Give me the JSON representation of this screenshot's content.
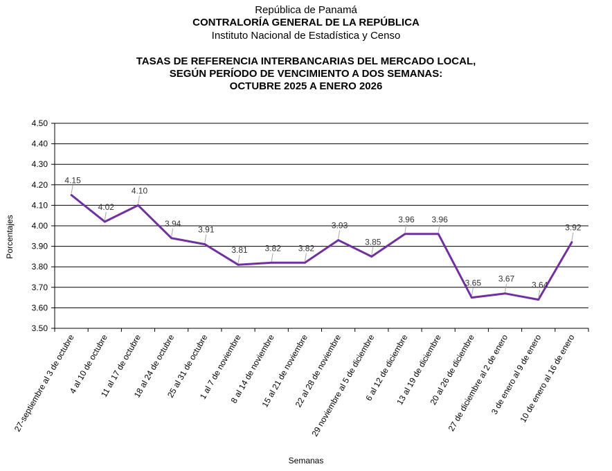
{
  "header": {
    "line1": "República de Panamá",
    "line2": "CONTRALORÍA GENERAL DE LA REPÚBLICA",
    "line3": "Instituto  Nacional de Estadística  y  Censo"
  },
  "chart_data": {
    "type": "line",
    "title_lines": [
      "TASAS DE REFERENCIA INTERBANCARIAS DEL MERCADO LOCAL,",
      "SEGÚN PERÍODO DE VENCIMIENTO A DOS SEMANAS:",
      "OCTUBRE 2025 A ENERO 2026"
    ],
    "xlabel": "Semanas",
    "ylabel": "Porcentajes",
    "ylim": [
      3.5,
      4.5
    ],
    "yticks": [
      "3.50",
      "3.60",
      "3.70",
      "3.80",
      "3.90",
      "4.00",
      "4.10",
      "4.20",
      "4.30",
      "4.40",
      "4.50"
    ],
    "grid": true,
    "line_color": "#7030A0",
    "categories": [
      "27-septiembre al 3 de octubre",
      "4 al 10 de octubre",
      "11 al 17 de octubre",
      "18 al 24 de octubre",
      "25 al 31 de octubre",
      "1 al 7 de noviembre",
      "8 al 14 de noviembre",
      "15 al 21 de noviembre",
      "22 al 28 de noviembre",
      "29 noviembre al 5 de diciembre",
      "6 al 12 de diciembre",
      "13 al 19 de diciembre",
      "20 al 26 de diciembre",
      "27 de diciembre al 2 de enero",
      "3 de enero al 9 de enero",
      "10 de enero al 16 de enero"
    ],
    "values": [
      4.15,
      4.02,
      4.1,
      3.94,
      3.91,
      3.81,
      3.82,
      3.82,
      3.93,
      3.85,
      3.96,
      3.96,
      3.65,
      3.67,
      3.64,
      3.92
    ],
    "data_labels": [
      "4.15",
      "4.02",
      "4.10",
      "3.94",
      "3.91",
      "3.81",
      "3.82",
      "3.82",
      "3.93",
      "3.85",
      "3.96",
      "3.96",
      "3.65",
      "3.67",
      "3.64",
      "3.92"
    ]
  }
}
